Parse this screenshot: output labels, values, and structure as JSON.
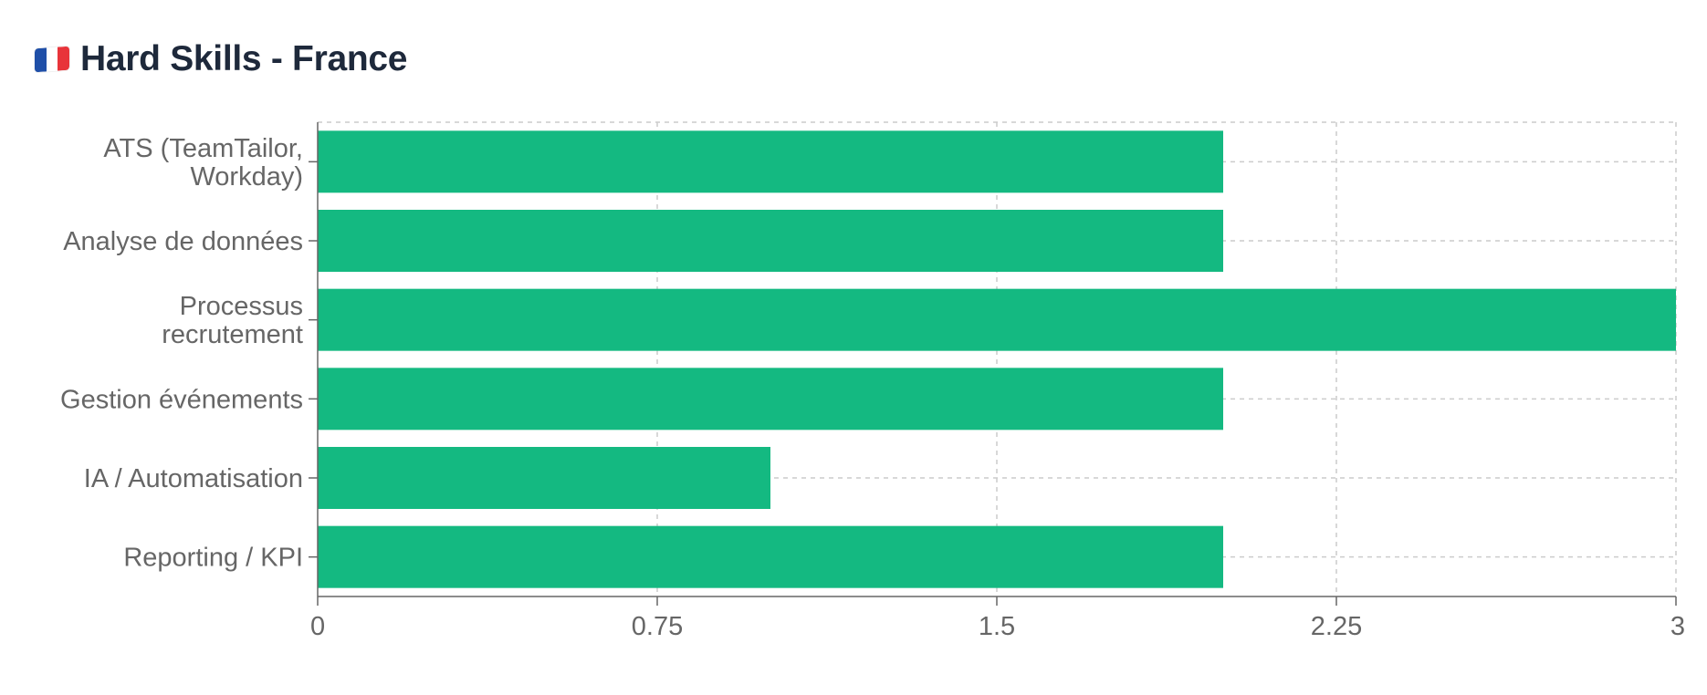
{
  "header": {
    "flag_icon": "france-flag-icon",
    "flag_colors": [
      "#1f4fa8",
      "#ffffff",
      "#e8343a"
    ],
    "title": "Hard Skills - France"
  },
  "colors": {
    "bar": "#14b981",
    "grid": "#cccccc",
    "axis": "#666666",
    "title": "#1e293b"
  },
  "chart_data": {
    "type": "bar",
    "orientation": "horizontal",
    "title": "Hard Skills - France",
    "xlabel": "",
    "ylabel": "",
    "categories": [
      [
        "ATS (TeamTailor,",
        "Workday)"
      ],
      [
        "Analyse de données"
      ],
      [
        "Processus",
        "recrutement"
      ],
      [
        "Gestion événements"
      ],
      [
        "IA / Automatisation"
      ],
      [
        "Reporting / KPI"
      ]
    ],
    "values": [
      2,
      2,
      3,
      2,
      1,
      2
    ],
    "xlim": [
      0,
      3
    ],
    "xticks": [
      "0",
      "0.75",
      "1.5",
      "2.25",
      "3"
    ],
    "grid": true,
    "legend": "none"
  }
}
